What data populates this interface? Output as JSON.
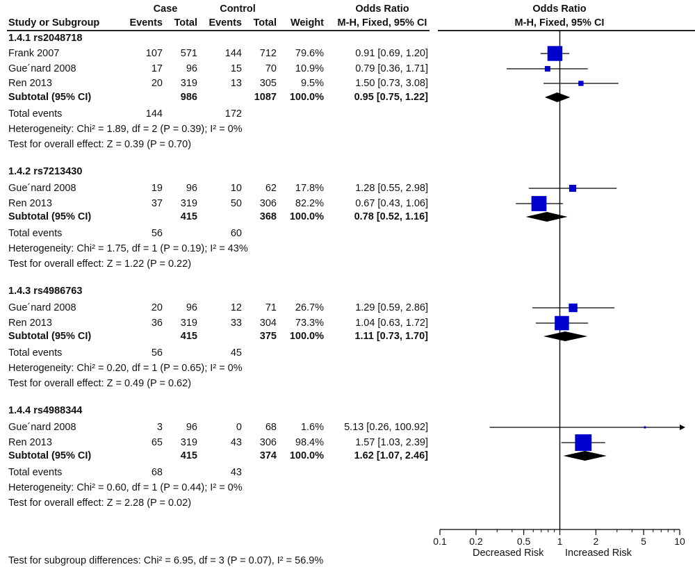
{
  "header": {
    "case_label": "Case",
    "control_label": "Control",
    "or_label_left": "Odds Ratio",
    "or_label_right": "Odds Ratio",
    "study_col": "Study or Subgroup",
    "events_col": "Events",
    "total_col": "Total",
    "events_col2": "Events",
    "total_col2": "Total",
    "weight_col": "Weight",
    "method_left": "M-H, Fixed, 95% CI",
    "method_right": "M-H, Fixed, 95% CI"
  },
  "groups": [
    {
      "title": "1.4.1 rs2048718",
      "studies": [
        {
          "name": "Frank 2007",
          "case_e": "107",
          "case_t": "571",
          "ctrl_e": "144",
          "ctrl_t": "712",
          "weight": "79.6%",
          "ci": "0.91 [0.69, 1.20]"
        },
        {
          "name": "Gue´nard 2008",
          "case_e": "17",
          "case_t": "96",
          "ctrl_e": "15",
          "ctrl_t": "70",
          "weight": "10.9%",
          "ci": "0.79 [0.36, 1.71]"
        },
        {
          "name": "Ren 2013",
          "case_e": "20",
          "case_t": "319",
          "ctrl_e": "13",
          "ctrl_t": "305",
          "weight": "9.5%",
          "ci": "1.50 [0.73, 3.08]"
        }
      ],
      "subtotal": {
        "label": "Subtotal (95% CI)",
        "case_t": "986",
        "ctrl_t": "1087",
        "weight": "100.0%",
        "ci": "0.95 [0.75, 1.22]"
      },
      "total_events": {
        "label": "Total events",
        "case": "144",
        "ctrl": "172"
      },
      "heterogeneity": "Heterogeneity: Chi² = 1.89, df = 2 (P = 0.39); I² = 0%",
      "overall": "Test for overall effect: Z = 0.39 (P = 0.70)"
    },
    {
      "title": "1.4.2 rs7213430",
      "studies": [
        {
          "name": "Gue´nard 2008",
          "case_e": "19",
          "case_t": "96",
          "ctrl_e": "10",
          "ctrl_t": "62",
          "weight": "17.8%",
          "ci": "1.28 [0.55, 2.98]"
        },
        {
          "name": "Ren 2013",
          "case_e": "37",
          "case_t": "319",
          "ctrl_e": "50",
          "ctrl_t": "306",
          "weight": "82.2%",
          "ci": "0.67 [0.43, 1.06]"
        }
      ],
      "subtotal": {
        "label": "Subtotal (95% CI)",
        "case_t": "415",
        "ctrl_t": "368",
        "weight": "100.0%",
        "ci": "0.78 [0.52, 1.16]"
      },
      "total_events": {
        "label": "Total events",
        "case": "56",
        "ctrl": "60"
      },
      "heterogeneity": "Heterogeneity: Chi² = 1.75, df = 1 (P = 0.19); I² = 43%",
      "overall": "Test for overall effect: Z = 1.22 (P = 0.22)"
    },
    {
      "title": "1.4.3 rs4986763",
      "studies": [
        {
          "name": "Gue´nard 2008",
          "case_e": "20",
          "case_t": "96",
          "ctrl_e": "12",
          "ctrl_t": "71",
          "weight": "26.7%",
          "ci": "1.29 [0.59, 2.86]"
        },
        {
          "name": "Ren 2013",
          "case_e": "36",
          "case_t": "319",
          "ctrl_e": "33",
          "ctrl_t": "304",
          "weight": "73.3%",
          "ci": "1.04 [0.63, 1.72]"
        }
      ],
      "subtotal": {
        "label": "Subtotal (95% CI)",
        "case_t": "415",
        "ctrl_t": "375",
        "weight": "100.0%",
        "ci": "1.11 [0.73, 1.70]"
      },
      "total_events": {
        "label": "Total events",
        "case": "56",
        "ctrl": "45"
      },
      "heterogeneity": "Heterogeneity: Chi² = 0.20, df = 1 (P = 0.65); I² = 0%",
      "overall": "Test for overall effect: Z = 0.49 (P = 0.62)"
    },
    {
      "title": "1.4.4 rs4988344",
      "studies": [
        {
          "name": "Gue´nard 2008",
          "case_e": "3",
          "case_t": "96",
          "ctrl_e": "0",
          "ctrl_t": "68",
          "weight": "1.6%",
          "ci": "5.13 [0.26, 100.92]"
        },
        {
          "name": "Ren 2013",
          "case_e": "65",
          "case_t": "319",
          "ctrl_e": "43",
          "ctrl_t": "306",
          "weight": "98.4%",
          "ci": "1.57 [1.03, 2.39]"
        }
      ],
      "subtotal": {
        "label": "Subtotal (95% CI)",
        "case_t": "415",
        "ctrl_t": "374",
        "weight": "100.0%",
        "ci": "1.62 [1.07, 2.46]"
      },
      "total_events": {
        "label": "Total events",
        "case": "68",
        "ctrl": "43"
      },
      "heterogeneity": "Heterogeneity: Chi² = 0.60, df = 1 (P = 0.44); I² = 0%",
      "overall": "Test for overall effect: Z = 2.28 (P = 0.02)"
    }
  ],
  "footer": {
    "subgroup_diff": "Test for subgroup differences: Chi² = 6.95, df = 3 (P = 0.07), I² = 56.9%"
  },
  "axis": {
    "ticks": [
      "0.1",
      "0.2",
      "0.5",
      "1",
      "2",
      "5",
      "10"
    ],
    "left_label": "Decreased Risk",
    "right_label": "Increased Risk"
  },
  "chart_data": {
    "type": "forest",
    "x_scale": "log",
    "xlim": [
      0.1,
      10
    ],
    "x_ticks": [
      0.1,
      0.2,
      0.5,
      1,
      2,
      5,
      10
    ],
    "null_line": 1,
    "marker_color": "#0000cc",
    "diamond_color": "#000000",
    "studies": [
      {
        "group": 0,
        "or": 0.91,
        "lo": 0.69,
        "hi": 1.2,
        "weight": 79.6
      },
      {
        "group": 0,
        "or": 0.79,
        "lo": 0.36,
        "hi": 1.71,
        "weight": 10.9
      },
      {
        "group": 0,
        "or": 1.5,
        "lo": 0.73,
        "hi": 3.08,
        "weight": 9.5
      },
      {
        "group": 1,
        "or": 1.28,
        "lo": 0.55,
        "hi": 2.98,
        "weight": 17.8
      },
      {
        "group": 1,
        "or": 0.67,
        "lo": 0.43,
        "hi": 1.06,
        "weight": 82.2
      },
      {
        "group": 2,
        "or": 1.29,
        "lo": 0.59,
        "hi": 2.86,
        "weight": 26.7
      },
      {
        "group": 2,
        "or": 1.04,
        "lo": 0.63,
        "hi": 1.72,
        "weight": 73.3
      },
      {
        "group": 3,
        "or": 5.13,
        "lo": 0.26,
        "hi": 100.92,
        "weight": 1.6
      },
      {
        "group": 3,
        "or": 1.57,
        "lo": 1.03,
        "hi": 2.39,
        "weight": 98.4
      }
    ],
    "subtotals": [
      {
        "group": 0,
        "or": 0.95,
        "lo": 0.75,
        "hi": 1.22
      },
      {
        "group": 1,
        "or": 0.78,
        "lo": 0.52,
        "hi": 1.16
      },
      {
        "group": 2,
        "or": 1.11,
        "lo": 0.73,
        "hi": 1.7
      },
      {
        "group": 3,
        "or": 1.62,
        "lo": 1.07,
        "hi": 2.46
      }
    ]
  }
}
